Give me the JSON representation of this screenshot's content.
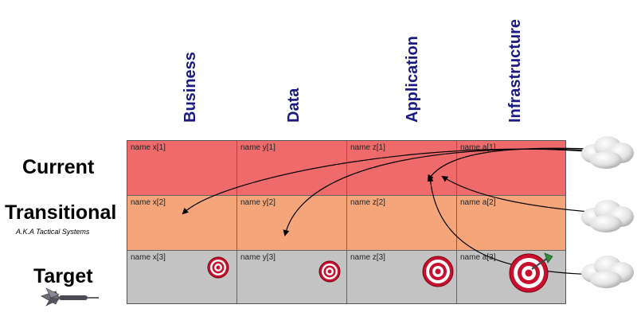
{
  "columns": [
    "Business",
    "Data",
    "Application",
    "Infrastructure"
  ],
  "rows": {
    "current": "Current",
    "transitional": "Transitional",
    "transitional_sub": "A.K.A Tactical Systems",
    "target": "Target"
  },
  "cells": [
    [
      "name x[1]",
      "name y[1]",
      "name z[1]",
      "name a[1]"
    ],
    [
      "name x[2]",
      "name y[2]",
      "name z[2]",
      "name a[2]"
    ],
    [
      "name x[3]",
      "name y[3]",
      "name z[3]",
      "name a[3]"
    ]
  ],
  "colors": {
    "current_row": "#ef6b6b",
    "transitional_row": "#f4a67a",
    "target_row": "#c3c3c3",
    "header_text": "#1a1a80",
    "target_red": "#c8102e"
  },
  "icons": [
    "cloud-icon",
    "target-icon",
    "dart-icon"
  ]
}
